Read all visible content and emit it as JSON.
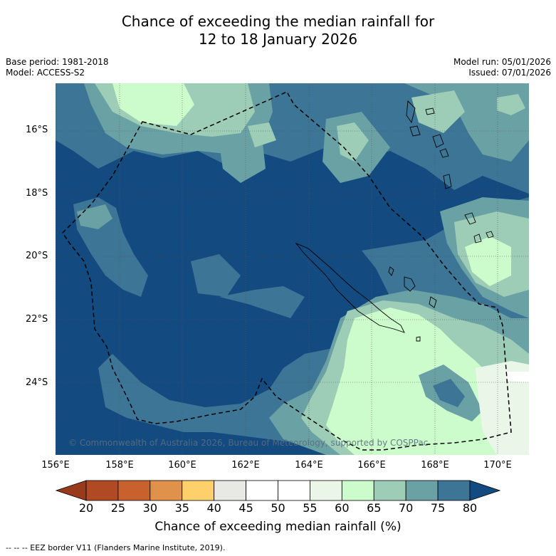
{
  "title_line1": "Chance of exceeding the median rainfall for",
  "title_line2": "12 to 18 January 2026",
  "base_period": "Base period: 1981-2018",
  "model": "Model: ACCESS-S2",
  "model_run": "Model run: 05/01/2026",
  "issued": "Issued: 07/01/2026",
  "copyright": "© Commonwealth of Australia 2026, Bureau of Meteorology, supported by COSPPac",
  "latitude_labels": [
    "16°S",
    "18°S",
    "20°S",
    "22°S",
    "24°S"
  ],
  "longitude_labels": [
    "156°E",
    "158°E",
    "160°E",
    "162°E",
    "164°E",
    "166°E",
    "168°E",
    "170°E"
  ],
  "colorbar": {
    "title": "Chance of exceeding median rainfall (%)",
    "ticks": [
      "20",
      "25",
      "30",
      "35",
      "40",
      "45",
      "50",
      "55",
      "60",
      "65",
      "70",
      "75",
      "80"
    ],
    "colors": [
      "#b04a24",
      "#c9612f",
      "#e0914a",
      "#fdd06b",
      "#e8e8e4",
      "#ffffff",
      "#ffffff",
      "#eaf7e8",
      "#ccfccc",
      "#9dcdb6",
      "#6aa1a4",
      "#3d7596"
    ],
    "below_color": "#9a3a1c",
    "above_color": "#134a80"
  },
  "footnote": "-- -- -- EEZ border V11 (Flanders Marine Institute, 2019)."
}
